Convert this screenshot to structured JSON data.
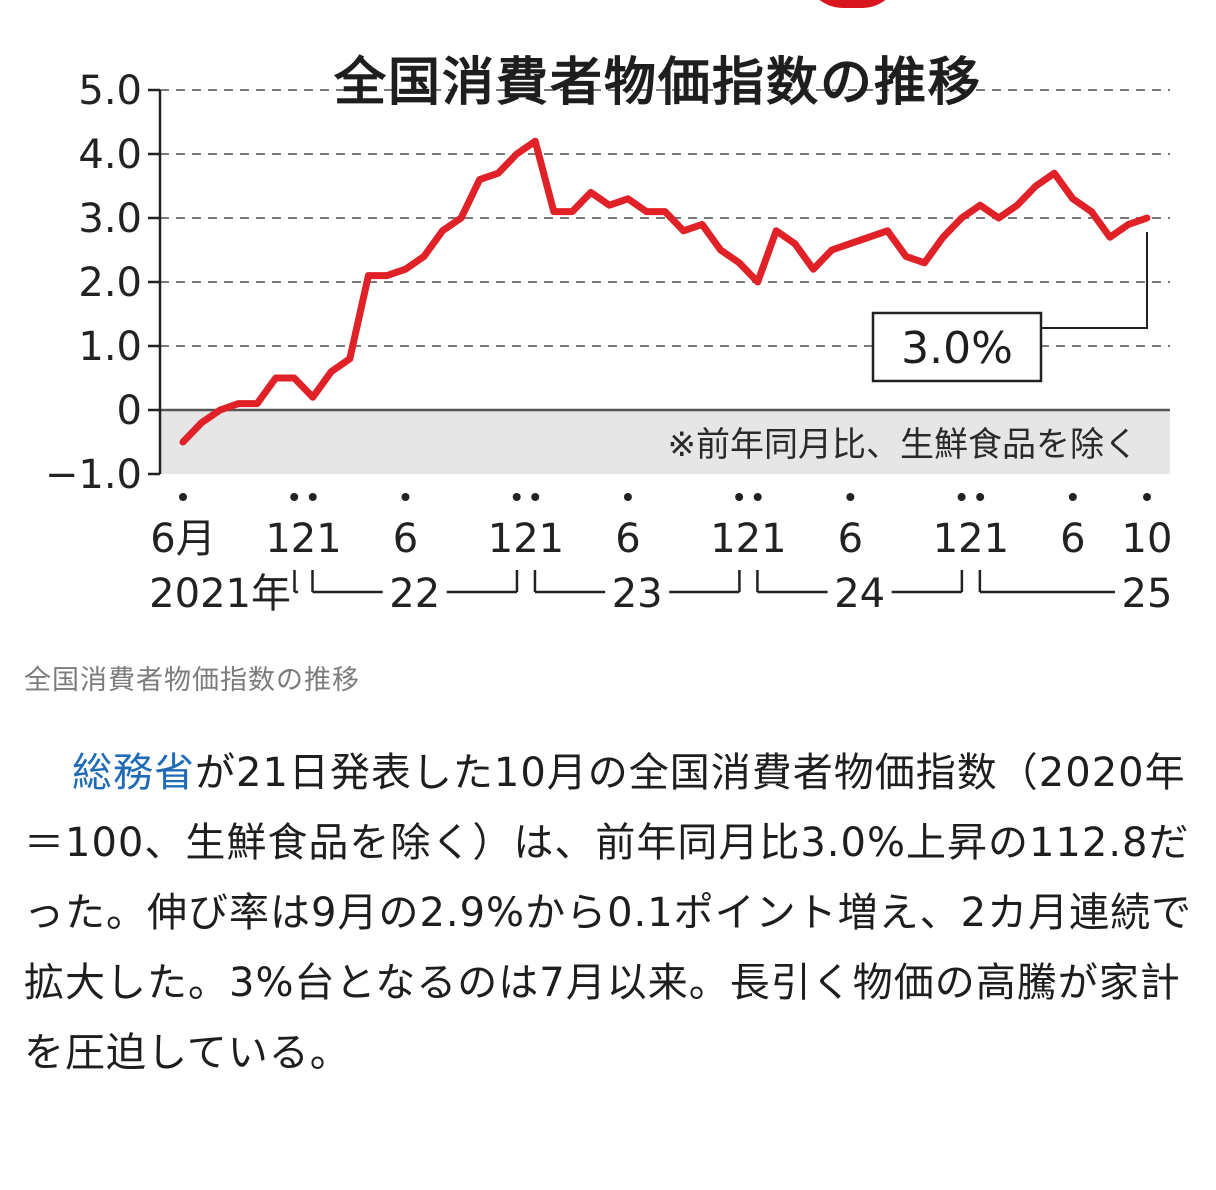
{
  "colors": {
    "line": "#e02128",
    "accent_circle": "#d9161f",
    "link": "#1f6bb6",
    "grid": "#7a7a7a",
    "negative_band": "#e6e6e6"
  },
  "chart_data": {
    "type": "line",
    "title": "全国消費者物価指数の推移",
    "note": "※前年同月比、生鮮食品を除く",
    "callout": "3.0%",
    "ylim": [
      -1.0,
      5.0
    ],
    "y_ticks": [
      "5.0",
      "4.0",
      "3.0",
      "2.0",
      "1.0",
      "0",
      "−1.0"
    ],
    "y_tick_values": [
      5,
      4,
      3,
      2,
      1,
      0,
      -1
    ],
    "x_month_labels": [
      {
        "label": "6月",
        "index": 0
      },
      {
        "label": "121",
        "index": 6.5
      },
      {
        "label": "6",
        "index": 12
      },
      {
        "label": "121",
        "index": 18.5
      },
      {
        "label": "6",
        "index": 24
      },
      {
        "label": "121",
        "index": 30.5
      },
      {
        "label": "6",
        "index": 36
      },
      {
        "label": "121",
        "index": 42.5
      },
      {
        "label": "6",
        "index": 48
      },
      {
        "label": "10",
        "index": 52
      }
    ],
    "x_year_labels": [
      {
        "label": "2021年",
        "index": 2
      },
      {
        "label": "22",
        "index": 12.5
      },
      {
        "label": "23",
        "index": 24.5
      },
      {
        "label": "24",
        "index": 36.5
      },
      {
        "label": "25",
        "index": 52
      }
    ],
    "dot_indices": [
      0,
      6,
      7,
      12,
      18,
      19,
      24,
      30,
      31,
      36,
      42,
      43,
      48,
      52
    ],
    "year_bracket_boundaries": [
      6.5,
      18.5,
      30.5,
      42.5
    ],
    "series": [
      {
        "name": "前年同月比",
        "x_start": "2021-06",
        "values": [
          -0.5,
          -0.2,
          0.0,
          0.1,
          0.1,
          0.5,
          0.5,
          0.2,
          0.6,
          0.8,
          2.1,
          2.1,
          2.2,
          2.4,
          2.8,
          3.0,
          3.6,
          3.7,
          4.0,
          4.2,
          3.1,
          3.1,
          3.4,
          3.2,
          3.3,
          3.1,
          3.1,
          2.8,
          2.9,
          2.5,
          2.3,
          2.0,
          2.8,
          2.6,
          2.2,
          2.5,
          2.6,
          2.7,
          2.8,
          2.4,
          2.3,
          2.7,
          3.0,
          3.2,
          3.0,
          3.2,
          3.5,
          3.7,
          3.3,
          3.1,
          2.7,
          2.9,
          3.0
        ]
      }
    ]
  },
  "caption": "全国消費者物価指数の推移",
  "article": {
    "link_text": "総務省",
    "body": "が21日発表した10月の全国消費者物価指数（2020年＝100、生鮮食品を除く）は、前年同月比3.0%上昇の112.8だった。伸び率は9月の2.9%から0.1ポイント増え、2カ月連続で拡大した。3%台となるのは7月以来。長引く物価の高騰が家計を圧迫している。"
  }
}
